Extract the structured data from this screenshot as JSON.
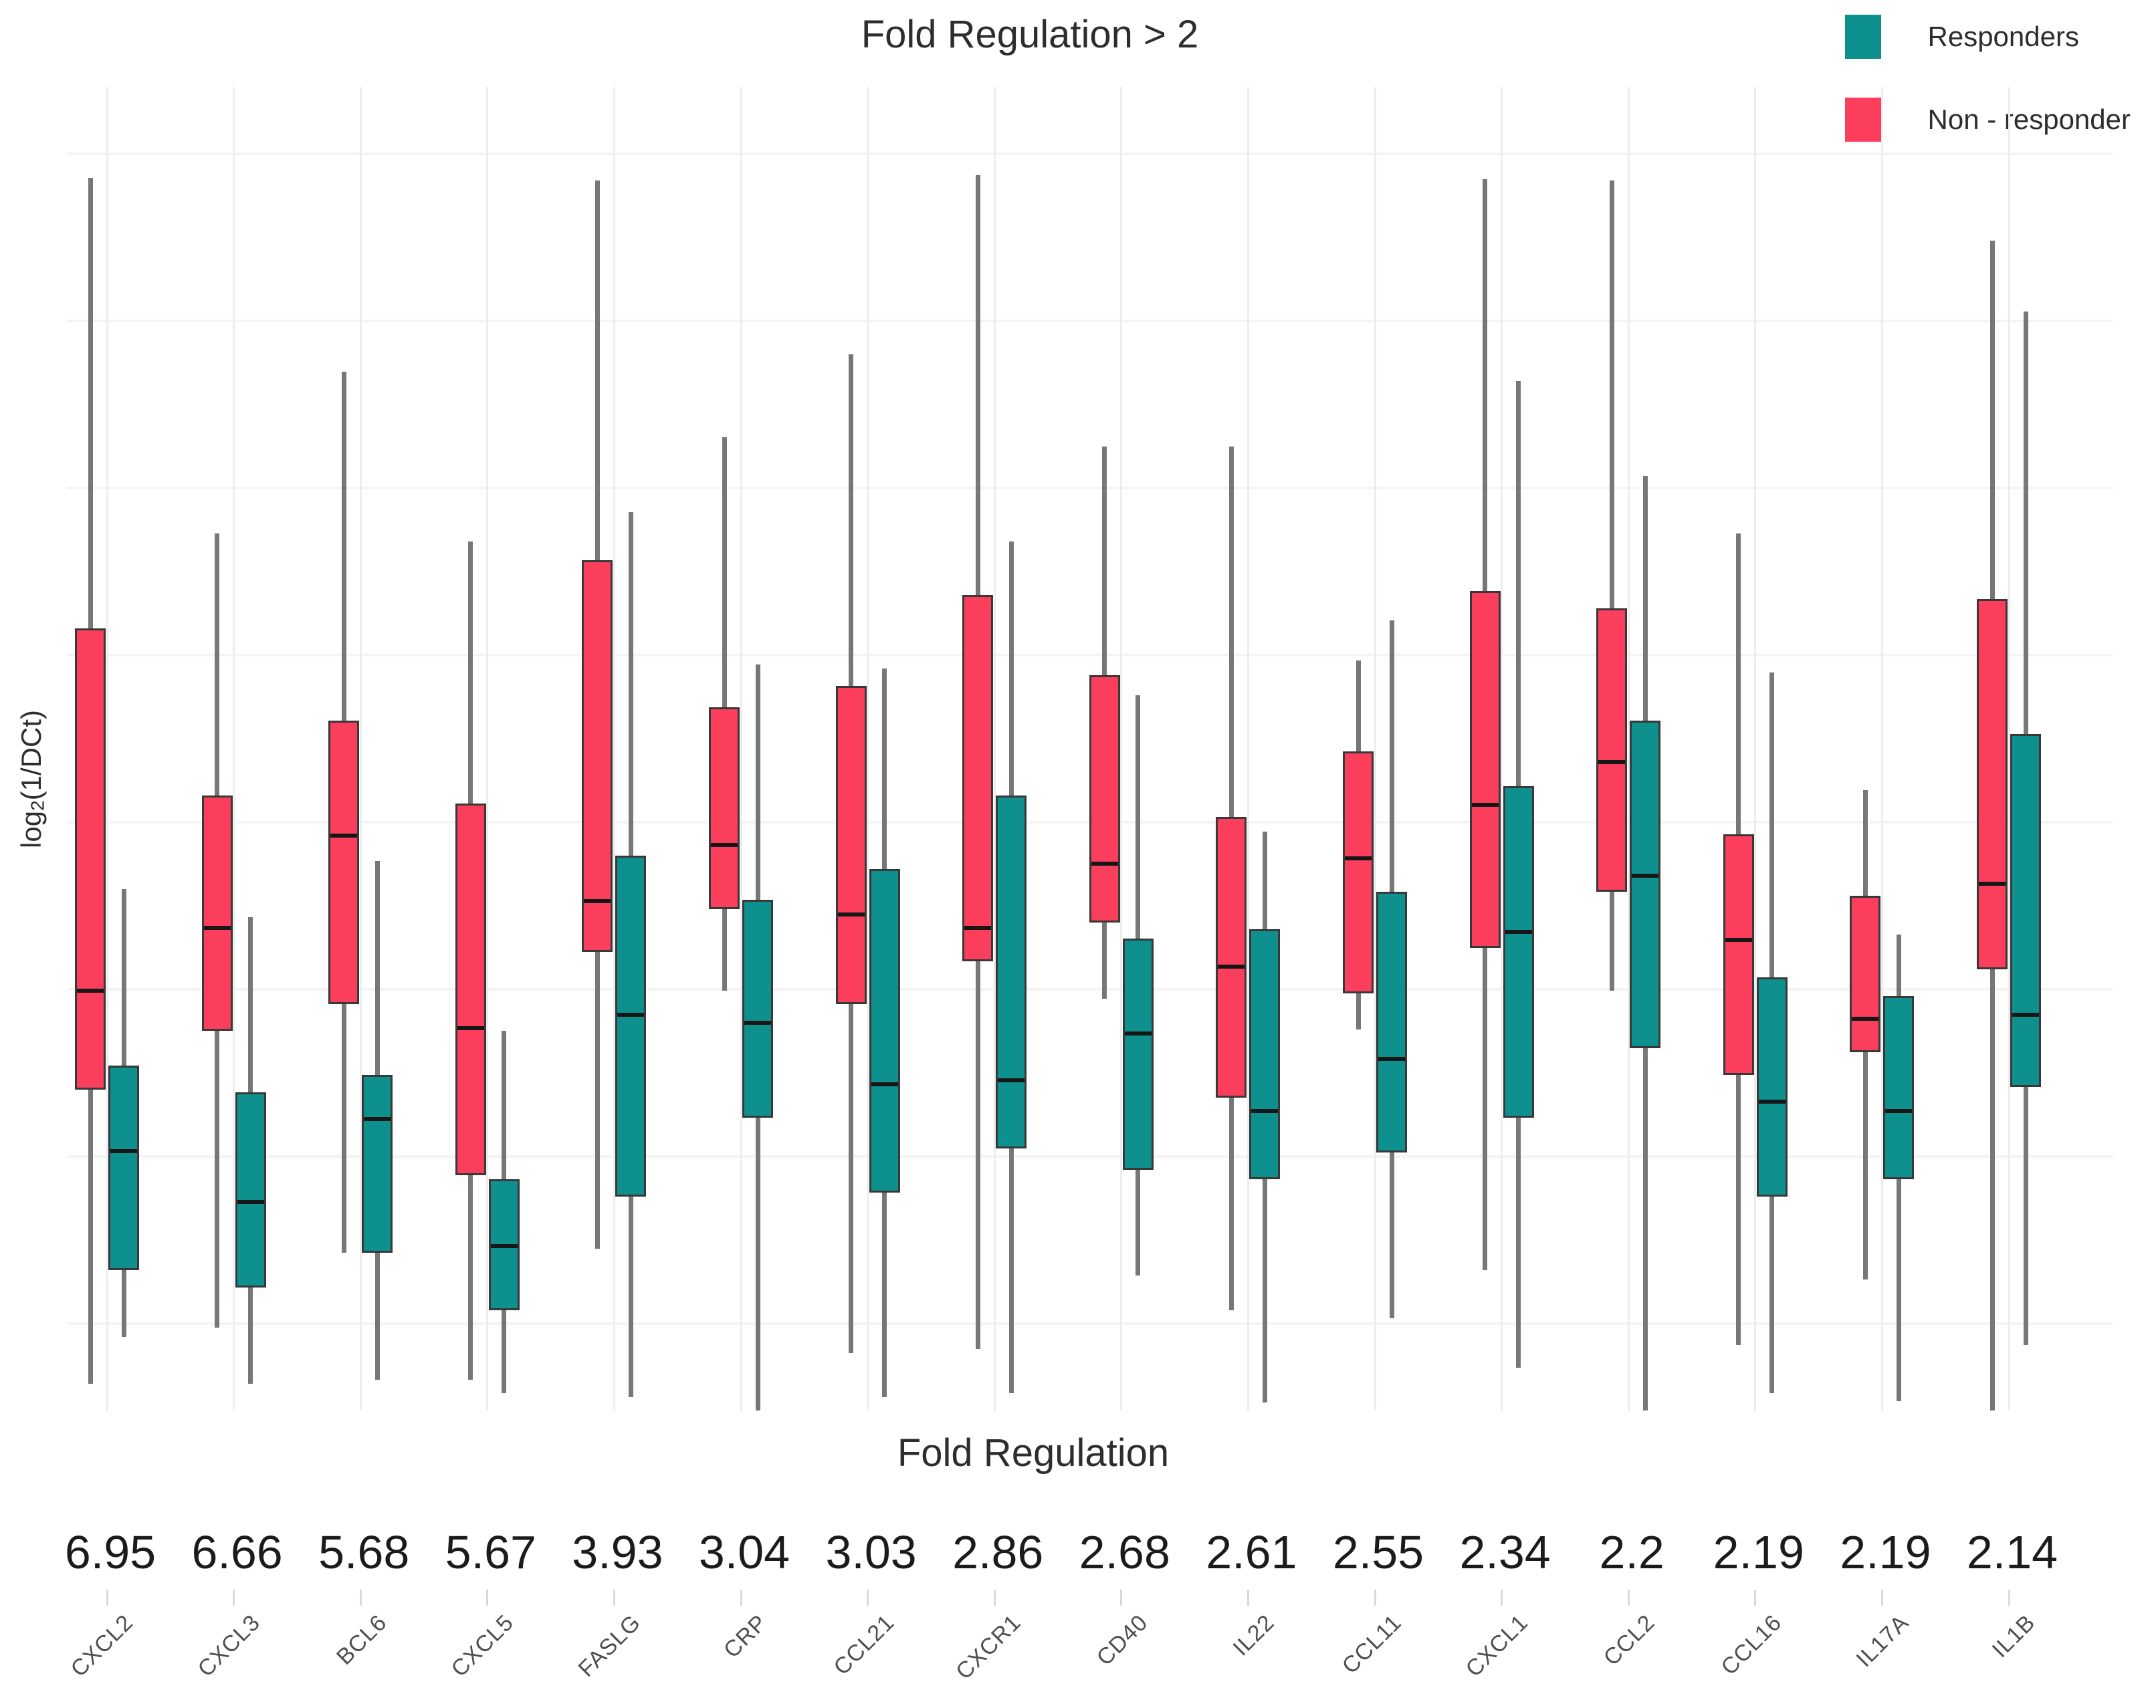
{
  "chart_data": {
    "type": "box",
    "title": "Fold Regulation > 2",
    "xlabel": "Fold Regulation",
    "ylabel": "log2(1/DCt)",
    "ylabel_parts": {
      "prefix": "log",
      "sub": "2",
      "suffix": "(1/DCt)"
    },
    "y_axis": {
      "tick_labels_visible": false,
      "units": "relative scale 0-100 (no numeric ticks shown in figure)",
      "ylim": [
        0,
        100
      ]
    },
    "grid": {
      "horizontal": "faint",
      "vertical": "faint line at each gene category"
    },
    "legend": [
      {
        "label": "Responders",
        "color": "#0e908f"
      },
      {
        "label": "Non - responder",
        "color": "#fa3e5c"
      }
    ],
    "colors": {
      "responder_fill": "#0e908f",
      "non_responder_fill": "#fa3e5c",
      "box_border": "#383838",
      "median_line": "#161616",
      "whisker": "#777777"
    },
    "series_order_within_category": [
      "non_responder",
      "responder"
    ],
    "genes": [
      {
        "gene": "CXCL2",
        "fold_regulation": "6.95",
        "non_responder": {
          "whisker_low": 2.0,
          "q1": 24.0,
          "median": 31.5,
          "q3": 58.5,
          "whisker_high": 92.2
        },
        "responder": {
          "whisker_low": 5.5,
          "q1": 10.5,
          "median": 19.5,
          "q3": 25.8,
          "whisker_high": 39.0
        }
      },
      {
        "gene": "CXCL3",
        "fold_regulation": "6.66",
        "non_responder": {
          "whisker_low": 6.2,
          "q1": 28.4,
          "median": 36.2,
          "q3": 46.0,
          "whisker_high": 65.6
        },
        "responder": {
          "whisker_low": 2.0,
          "q1": 9.2,
          "median": 15.7,
          "q3": 23.8,
          "whisker_high": 36.9
        }
      },
      {
        "gene": "BCL6",
        "fold_regulation": "5.68",
        "non_responder": {
          "whisker_low": 11.8,
          "q1": 30.4,
          "median": 43.1,
          "q3": 51.6,
          "whisker_high": 77.7
        },
        "responder": {
          "whisker_low": 2.3,
          "q1": 11.8,
          "median": 21.9,
          "q3": 25.1,
          "whisker_high": 41.1
        }
      },
      {
        "gene": "CXCL5",
        "fold_regulation": "5.67",
        "non_responder": {
          "whisker_low": 2.3,
          "q1": 17.6,
          "median": 28.7,
          "q3": 45.4,
          "whisker_high": 65.0
        },
        "responder": {
          "whisker_low": 1.3,
          "q1": 7.5,
          "median": 12.4,
          "q3": 17.3,
          "whisker_high": 28.4
        }
      },
      {
        "gene": "FASLG",
        "fold_regulation": "3.93",
        "non_responder": {
          "whisker_low": 12.1,
          "q1": 34.3,
          "median": 38.2,
          "q3": 63.6,
          "whisker_high": 92.0
        },
        "responder": {
          "whisker_low": 1.0,
          "q1": 16.0,
          "median": 29.7,
          "q3": 41.5,
          "whisker_high": 67.2
        }
      },
      {
        "gene": "CRP",
        "fold_regulation": "3.04",
        "non_responder": {
          "whisker_low": 31.4,
          "q1": 37.5,
          "median": 42.4,
          "q3": 52.6,
          "whisker_high": 72.8
        },
        "responder": {
          "whisker_low": 0.0,
          "q1": 21.9,
          "median": 29.1,
          "q3": 38.2,
          "whisker_high": 55.8
        }
      },
      {
        "gene": "CCL21",
        "fold_regulation": "3.03",
        "non_responder": {
          "whisker_low": 4.3,
          "q1": 30.4,
          "median": 37.2,
          "q3": 54.2,
          "whisker_high": 79.0
        },
        "responder": {
          "whisker_low": 1.0,
          "q1": 16.3,
          "median": 24.5,
          "q3": 40.5,
          "whisker_high": 55.5
        }
      },
      {
        "gene": "CXCR1",
        "fold_regulation": "2.86",
        "non_responder": {
          "whisker_low": 4.6,
          "q1": 33.6,
          "median": 36.2,
          "q3": 61.0,
          "whisker_high": 92.4
        },
        "responder": {
          "whisker_low": 1.3,
          "q1": 19.6,
          "median": 24.8,
          "q3": 46.0,
          "whisker_high": 65.0
        }
      },
      {
        "gene": "CD40",
        "fold_regulation": "2.68",
        "non_responder": {
          "whisker_low": 30.8,
          "q1": 36.5,
          "median": 41.0,
          "q3": 55.0,
          "whisker_high": 72.1
        },
        "responder": {
          "whisker_low": 10.1,
          "q1": 18.0,
          "median": 28.3,
          "q3": 35.3,
          "whisker_high": 53.5
        }
      },
      {
        "gene": "IL22",
        "fold_regulation": "2.61",
        "non_responder": {
          "whisker_low": 7.5,
          "q1": 23.4,
          "median": 33.3,
          "q3": 44.4,
          "whisker_high": 72.1
        },
        "responder": {
          "whisker_low": 0.6,
          "q1": 17.3,
          "median": 22.5,
          "q3": 36.0,
          "whisker_high": 43.3
        }
      },
      {
        "gene": "CCL11",
        "fold_regulation": "2.55",
        "non_responder": {
          "whisker_low": 28.5,
          "q1": 31.2,
          "median": 41.4,
          "q3": 49.3,
          "whisker_high": 56.1
        },
        "responder": {
          "whisker_low": 6.9,
          "q1": 19.3,
          "median": 26.4,
          "q3": 38.8,
          "whisker_high": 59.1
        }
      },
      {
        "gene": "CXCL1",
        "fold_regulation": "2.34",
        "non_responder": {
          "whisker_low": 10.5,
          "q1": 34.6,
          "median": 45.4,
          "q3": 61.3,
          "whisker_high": 92.1
        },
        "responder": {
          "whisker_low": 3.2,
          "q1": 21.9,
          "median": 35.9,
          "q3": 46.7,
          "whisker_high": 77.0
        }
      },
      {
        "gene": "CCL2",
        "fold_regulation": "2.2",
        "non_responder": {
          "whisker_low": 31.4,
          "q1": 38.8,
          "median": 48.6,
          "q3": 60.0,
          "whisker_high": 92.0
        },
        "responder": {
          "whisker_low": 0.0,
          "q1": 27.1,
          "median": 40.1,
          "q3": 51.6,
          "whisker_high": 69.9
        }
      },
      {
        "gene": "CCL16",
        "fold_regulation": "2.19",
        "non_responder": {
          "whisker_low": 4.9,
          "q1": 25.1,
          "median": 35.3,
          "q3": 43.1,
          "whisker_high": 65.6
        },
        "responder": {
          "whisker_low": 1.3,
          "q1": 16.0,
          "median": 23.2,
          "q3": 32.4,
          "whisker_high": 55.2
        }
      },
      {
        "gene": "IL17A",
        "fold_regulation": "2.19",
        "non_responder": {
          "whisker_low": 9.8,
          "q1": 26.8,
          "median": 29.4,
          "q3": 38.5,
          "whisker_high": 46.4
        },
        "responder": {
          "whisker_low": 0.7,
          "q1": 17.3,
          "median": 22.5,
          "q3": 31.0,
          "whisker_high": 35.6
        }
      },
      {
        "gene": "IL1B",
        "fold_regulation": "2.14",
        "non_responder": {
          "whisker_low": 0.0,
          "q1": 33.0,
          "median": 39.5,
          "q3": 60.7,
          "whisker_high": 87.5
        },
        "responder": {
          "whisker_low": 4.9,
          "q1": 24.2,
          "median": 29.7,
          "q3": 50.6,
          "whisker_high": 82.2
        }
      }
    ]
  }
}
